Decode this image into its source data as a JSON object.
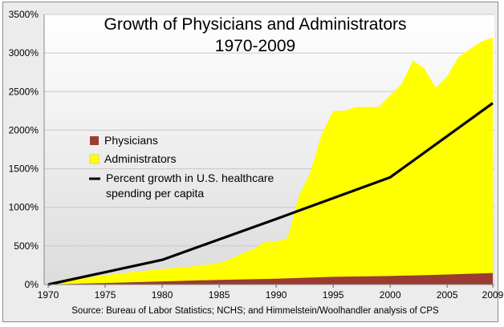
{
  "chart_data": {
    "type": "area",
    "title_line1": "Growth of Physicians and Administrators",
    "title_line2": "1970-2009",
    "source": "Source: Bureau of Labor Statistics; NCHS; and Himmelstein/Woolhandler analysis of CPS",
    "xlim": [
      1970,
      2009
    ],
    "ylim": [
      0,
      3500
    ],
    "x_ticks": [
      1970,
      1975,
      1980,
      1985,
      1990,
      1995,
      2000,
      2005,
      2009
    ],
    "y_ticks": [
      "0%",
      "500%",
      "1000%",
      "1500%",
      "2000%",
      "2500%",
      "3000%",
      "3500%"
    ],
    "y_tick_values": [
      0,
      500,
      1000,
      1500,
      2000,
      2500,
      3000,
      3500
    ],
    "legend": [
      {
        "label": "Physicians",
        "color": "#9b3b32",
        "kind": "swatch"
      },
      {
        "label": "Administrators",
        "color": "#ffff00",
        "kind": "swatch"
      },
      {
        "label": "Percent growth in U.S. healthcare",
        "label2": "spending per capita",
        "color": "#000000",
        "kind": "line"
      }
    ],
    "series": [
      {
        "name": "Administrators",
        "color": "#ffff00",
        "points": [
          [
            1970,
            0
          ],
          [
            1972,
            60
          ],
          [
            1975,
            120
          ],
          [
            1978,
            170
          ],
          [
            1980,
            200
          ],
          [
            1983,
            240
          ],
          [
            1985,
            280
          ],
          [
            1986,
            330
          ],
          [
            1987,
            400
          ],
          [
            1988,
            460
          ],
          [
            1989,
            550
          ],
          [
            1990,
            560
          ],
          [
            1991,
            600
          ],
          [
            1992,
            1150
          ],
          [
            1993,
            1450
          ],
          [
            1994,
            1950
          ],
          [
            1995,
            2250
          ],
          [
            1996,
            2250
          ],
          [
            1997,
            2300
          ],
          [
            1998,
            2300
          ],
          [
            1999,
            2300
          ],
          [
            2000,
            2450
          ],
          [
            2001,
            2600
          ],
          [
            2002,
            2900
          ],
          [
            2003,
            2800
          ],
          [
            2004,
            2550
          ],
          [
            2005,
            2700
          ],
          [
            2006,
            2950
          ],
          [
            2007,
            3050
          ],
          [
            2008,
            3150
          ],
          [
            2009,
            3200
          ]
        ]
      },
      {
        "name": "Physicians",
        "color": "#9b3b32",
        "points": [
          [
            1970,
            0
          ],
          [
            1975,
            20
          ],
          [
            1980,
            40
          ],
          [
            1985,
            60
          ],
          [
            1990,
            75
          ],
          [
            1995,
            100
          ],
          [
            2000,
            110
          ],
          [
            2005,
            130
          ],
          [
            2009,
            150
          ]
        ]
      },
      {
        "name": "Percent growth in U.S. healthcare spending per capita",
        "color": "#000000",
        "points": [
          [
            1970,
            0
          ],
          [
            1980,
            320
          ],
          [
            1990,
            850
          ],
          [
            2000,
            1390
          ],
          [
            2009,
            2350
          ]
        ]
      }
    ]
  }
}
